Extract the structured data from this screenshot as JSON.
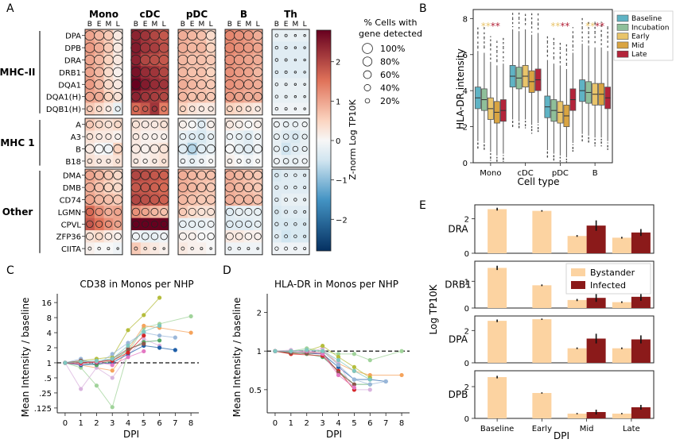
{
  "panels": {
    "A": "A",
    "B": "B",
    "C": "C",
    "D": "D",
    "E": "E"
  },
  "panelA": {
    "cell_types": [
      "Mono",
      "cDC",
      "pDC",
      "B",
      "Th"
    ],
    "stages": [
      "B",
      "E",
      "M",
      "L"
    ],
    "groups": [
      {
        "name": "MHC-II",
        "genes": [
          "DPA",
          "DPB",
          "DRA",
          "DRB1",
          "DQA1",
          "DQA1(H)",
          "DQB1(H)"
        ]
      },
      {
        "name": "MHC 1",
        "genes": [
          "A",
          "A3",
          "B",
          "B18"
        ]
      },
      {
        "name": "Other",
        "genes": [
          "DMA",
          "DMB",
          "CD74",
          "LGMN",
          "CPVL",
          "ZFP36",
          "CIITA"
        ]
      }
    ],
    "colorbar": {
      "label": "Z-norm Log TP10K",
      "ticks": [
        2,
        1,
        0,
        -1,
        -2
      ],
      "tick_labels": [
        "2",
        "1",
        "0",
        "−1",
        "−2"
      ],
      "min": -2.8,
      "max": 2.8
    },
    "size_legend": {
      "title_line1": "% Cells with",
      "title_line2": "gene detected",
      "entries": [
        "100%",
        "80%",
        "60%",
        "40%",
        "20%"
      ],
      "fractions": [
        1.0,
        0.8,
        0.6,
        0.4,
        0.2
      ]
    },
    "colors": {
      "pos": "#67001f",
      "mid": "#f7f7f7",
      "neg": "#053061"
    }
  },
  "panelB": {
    "chart_data": {
      "type": "box",
      "ylabel": "HLA-DR intensity",
      "xlabel": "Cell type",
      "categories": [
        "Mono",
        "cDC",
        "pDC",
        "B"
      ],
      "ylim": [
        0,
        8.5
      ],
      "yticks": [
        0,
        2,
        4,
        6,
        8
      ],
      "series": [
        {
          "name": "Baseline",
          "color": "#5fb3c4",
          "medians": [
            3.6,
            4.8,
            3.1,
            4.0
          ]
        },
        {
          "name": "Incubation",
          "color": "#8fbf9a",
          "medians": [
            3.5,
            4.7,
            2.9,
            3.9
          ]
        },
        {
          "name": "Early",
          "color": "#e9c46a",
          "medians": [
            3.0,
            4.8,
            2.8,
            3.8
          ]
        },
        {
          "name": "Mid",
          "color": "#d9a441",
          "medians": [
            2.8,
            4.5,
            2.6,
            3.8
          ]
        },
        {
          "name": "Late",
          "color": "#b3243a",
          "medians": [
            2.9,
            4.6,
            3.5,
            3.6
          ]
        }
      ],
      "stars": "**"
    }
  },
  "panelC": {
    "chart_data": {
      "type": "line",
      "title": "CD38 in Monos per NHP",
      "xlabel": "DPI",
      "ylabel": "Mean Intensity / baseline",
      "x_ticks": [
        0,
        1,
        2,
        3,
        4,
        5,
        6,
        7,
        8
      ],
      "y_ticks": [
        16,
        8,
        4,
        2,
        1,
        0.5,
        0.25,
        0.125
      ],
      "y_tick_labels": [
        "16",
        "8",
        "4",
        "2",
        "1",
        ".5",
        ".25",
        ".125"
      ],
      "log_scale": true,
      "series": [
        {
          "color": "#b5bd3c",
          "points": [
            [
              0,
              1
            ],
            [
              1,
              1.1
            ],
            [
              2,
              1.2
            ],
            [
              3,
              1.3
            ],
            [
              4,
              4.5
            ],
            [
              5,
              9
            ],
            [
              6,
              20
            ]
          ]
        },
        {
          "color": "#a0d39a",
          "points": [
            [
              0,
              1
            ],
            [
              1,
              0.8
            ],
            [
              2,
              0.35
            ],
            [
              3,
              0.13
            ],
            [
              4,
              1.6
            ],
            [
              5,
              5
            ],
            [
              6,
              6
            ],
            [
              8,
              8.5
            ]
          ]
        },
        {
          "color": "#f5a35c",
          "points": [
            [
              0,
              1
            ],
            [
              1,
              0.9
            ],
            [
              3,
              0.7
            ],
            [
              4,
              1.8
            ],
            [
              5,
              5.5
            ],
            [
              6,
              5
            ],
            [
              8,
              4
            ]
          ]
        },
        {
          "color": "#9ab7d9",
          "points": [
            [
              0,
              1
            ],
            [
              1,
              1.2
            ],
            [
              2,
              0.9
            ],
            [
              3,
              1.5
            ],
            [
              4,
              2.5
            ],
            [
              5,
              4
            ],
            [
              6,
              3.5
            ],
            [
              7,
              3.2
            ]
          ]
        },
        {
          "color": "#d9b3de",
          "points": [
            [
              0,
              1
            ],
            [
              1,
              0.3
            ],
            [
              2,
              0.8
            ],
            [
              3,
              0.5
            ],
            [
              4,
              1.4
            ],
            [
              5,
              3
            ],
            [
              6,
              2.2
            ]
          ]
        },
        {
          "color": "#55a868",
          "points": [
            [
              0,
              1
            ],
            [
              1,
              1.0
            ],
            [
              2,
              0.9
            ],
            [
              3,
              1.1
            ],
            [
              4,
              1.8
            ],
            [
              5,
              2.6
            ],
            [
              6,
              2.8
            ]
          ]
        },
        {
          "color": "#1f5fa8",
          "points": [
            [
              0,
              1
            ],
            [
              1,
              0.9
            ],
            [
              3,
              1.0
            ],
            [
              4,
              1.5
            ],
            [
              5,
              2.2
            ],
            [
              6,
              2.0
            ],
            [
              7,
              1.8
            ]
          ]
        },
        {
          "color": "#8c564b",
          "points": [
            [
              0,
              1
            ],
            [
              1,
              1.1
            ],
            [
              2,
              1.0
            ],
            [
              3,
              1.2
            ],
            [
              4,
              1.9
            ],
            [
              5,
              2.4
            ]
          ]
        },
        {
          "color": "#e377c2",
          "points": [
            [
              0,
              1
            ],
            [
              1,
              0.95
            ],
            [
              2,
              1.05
            ],
            [
              3,
              0.9
            ],
            [
              4,
              1.3
            ],
            [
              5,
              1.7
            ]
          ]
        },
        {
          "color": "#d62728",
          "points": [
            [
              0,
              1
            ],
            [
              1,
              1.0
            ],
            [
              3,
              1.1
            ],
            [
              4,
              1.6
            ],
            [
              5,
              3.5
            ]
          ]
        },
        {
          "color": "#7fc7c0",
          "points": [
            [
              0,
              1
            ],
            [
              1,
              1.05
            ],
            [
              2,
              1.1
            ],
            [
              3,
              1.2
            ],
            [
              4,
              2.2
            ],
            [
              5,
              4.2
            ],
            [
              6,
              5.5
            ]
          ]
        }
      ]
    }
  },
  "panelD": {
    "chart_data": {
      "type": "line",
      "title": "HLA-DR in Monos per NHP",
      "xlabel": "DPI",
      "ylabel": "Mean Intensity / baseline",
      "x_ticks": [
        0,
        1,
        2,
        3,
        4,
        5,
        6,
        7,
        8
      ],
      "y_ticks": [
        2,
        1,
        0.5
      ],
      "y_tick_labels": [
        "2",
        "1",
        "0.5"
      ],
      "log_scale": true,
      "series": [
        {
          "color": "#a0d39a",
          "points": [
            [
              0,
              1
            ],
            [
              1,
              1.0
            ],
            [
              2,
              1.05
            ],
            [
              3,
              1.0
            ],
            [
              4,
              0.95
            ],
            [
              5,
              0.95
            ],
            [
              6,
              0.85
            ],
            [
              8,
              1.0
            ]
          ]
        },
        {
          "color": "#f5a35c",
          "points": [
            [
              0,
              1
            ],
            [
              1,
              0.95
            ],
            [
              3,
              1.0
            ],
            [
              4,
              0.8
            ],
            [
              5,
              0.7
            ],
            [
              6,
              0.65
            ],
            [
              8,
              0.65
            ]
          ]
        },
        {
          "color": "#1f5fa8",
          "points": [
            [
              0,
              1
            ],
            [
              1,
              0.97
            ],
            [
              3,
              0.95
            ],
            [
              4,
              0.75
            ],
            [
              5,
              0.6
            ],
            [
              6,
              0.6
            ],
            [
              7,
              0.58
            ]
          ]
        },
        {
          "color": "#55a868",
          "points": [
            [
              0,
              1
            ],
            [
              1,
              0.98
            ],
            [
              2,
              0.95
            ],
            [
              3,
              0.9
            ],
            [
              4,
              0.7
            ],
            [
              5,
              0.55
            ],
            [
              6,
              0.55
            ]
          ]
        },
        {
          "color": "#d9b3de",
          "points": [
            [
              0,
              1
            ],
            [
              1,
              1.02
            ],
            [
              2,
              0.97
            ],
            [
              3,
              1.05
            ],
            [
              4,
              0.8
            ],
            [
              5,
              0.5
            ],
            [
              6,
              0.5
            ]
          ]
        },
        {
          "color": "#b5bd3c",
          "points": [
            [
              0,
              1
            ],
            [
              1,
              1.0
            ],
            [
              2,
              1.0
            ],
            [
              3,
              1.1
            ],
            [
              4,
              0.9
            ],
            [
              5,
              0.75
            ],
            [
              6,
              0.62
            ]
          ]
        },
        {
          "color": "#9ab7d9",
          "points": [
            [
              0,
              1
            ],
            [
              1,
              1.0
            ],
            [
              2,
              0.98
            ],
            [
              3,
              1.0
            ],
            [
              4,
              0.78
            ],
            [
              5,
              0.6
            ],
            [
              6,
              0.55
            ],
            [
              7,
              0.58
            ]
          ]
        },
        {
          "color": "#d62728",
          "points": [
            [
              0,
              1
            ],
            [
              1,
              0.95
            ],
            [
              3,
              0.92
            ],
            [
              4,
              0.7
            ],
            [
              5,
              0.5
            ]
          ]
        },
        {
          "color": "#8c564b",
          "points": [
            [
              0,
              1
            ],
            [
              1,
              0.97
            ],
            [
              2,
              0.96
            ],
            [
              3,
              0.97
            ],
            [
              4,
              0.68
            ],
            [
              5,
              0.55
            ]
          ]
        },
        {
          "color": "#e377c2",
          "points": [
            [
              0,
              1
            ],
            [
              1,
              1.0
            ],
            [
              2,
              1.0
            ],
            [
              3,
              0.95
            ],
            [
              4,
              0.65
            ],
            [
              5,
              0.52
            ]
          ]
        },
        {
          "color": "#7fc7c0",
          "points": [
            [
              0,
              1
            ],
            [
              1,
              1.0
            ],
            [
              2,
              1.02
            ],
            [
              3,
              1.0
            ],
            [
              4,
              0.85
            ],
            [
              5,
              0.7
            ],
            [
              6,
              0.6
            ]
          ]
        }
      ]
    }
  },
  "panelE": {
    "chart_data": {
      "type": "bar",
      "ylabel": "Log TP10K",
      "xlabel": "DPI",
      "categories": [
        "Baseline",
        "Early",
        "Mid",
        "Late"
      ],
      "legend": [
        "Bystander",
        "Infected"
      ],
      "colors": {
        "Bystander": "#fcd3a1",
        "Infected": "#8b1a1a"
      },
      "subplots": [
        {
          "gene": "DRA",
          "ymax": 2.8,
          "yticks": [
            0,
            2
          ],
          "bystander": [
            2.55,
            2.45,
            1.0,
            0.9
          ],
          "bystander_err": [
            0.08,
            0.04,
            0.05,
            0.05
          ],
          "infected": [
            null,
            null,
            1.6,
            1.2
          ],
          "infected_err": [
            0,
            0,
            0.3,
            0.2
          ]
        },
        {
          "gene": "DRB1",
          "ymax": 1.75,
          "yticks": [
            0,
            1
          ],
          "bystander": [
            1.5,
            0.85,
            0.3,
            0.22
          ],
          "bystander_err": [
            0.08,
            0.03,
            0.04,
            0.03
          ],
          "infected": [
            null,
            null,
            0.38,
            0.42
          ],
          "infected_err": [
            0,
            0,
            0.15,
            0.15
          ]
        },
        {
          "gene": "DPA",
          "ymax": 2.9,
          "yticks": [
            0,
            2
          ],
          "bystander": [
            2.6,
            2.7,
            0.9,
            0.9
          ],
          "bystander_err": [
            0.08,
            0.04,
            0.05,
            0.05
          ],
          "infected": [
            null,
            null,
            1.5,
            1.45
          ],
          "infected_err": [
            0,
            0,
            0.3,
            0.25
          ]
        },
        {
          "gene": "DPB",
          "ymax": 3.0,
          "yticks": [
            0,
            2
          ],
          "bystander": [
            2.6,
            1.6,
            0.3,
            0.3
          ],
          "bystander_err": [
            0.08,
            0.04,
            0.04,
            0.04
          ],
          "infected": [
            null,
            null,
            0.4,
            0.7
          ],
          "infected_err": [
            0,
            0,
            0.15,
            0.15
          ]
        }
      ]
    }
  }
}
